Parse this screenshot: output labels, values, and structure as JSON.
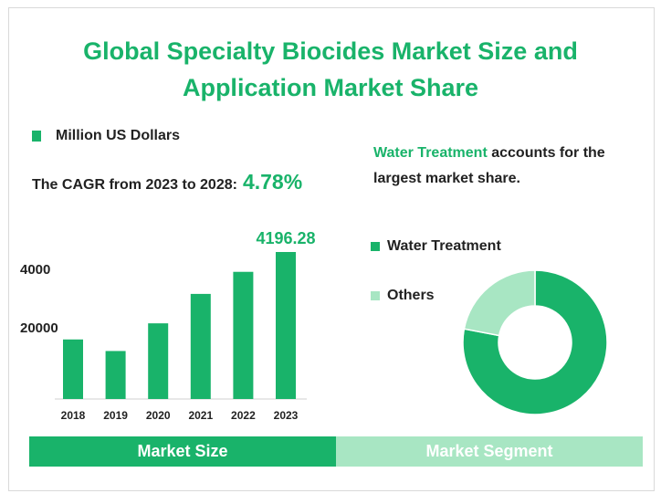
{
  "title_line1": "Global Specialty Biocides Market Size and",
  "title_line2": "Application Market Share",
  "unit_legend": "Million US Dollars",
  "cagr_label": "The CAGR from 2023 to 2028:",
  "cagr_value": "4.78%",
  "headline_highlight": "Water Treatment",
  "headline_rest": " accounts for the largest market share.",
  "tabs": {
    "left": "Market Size",
    "right": "Market Segment"
  },
  "colors": {
    "primary": "#19b36a",
    "light": "#a8e6c3"
  },
  "chart_data": [
    {
      "type": "bar",
      "categories": [
        "2018",
        "2019",
        "2020",
        "2021",
        "2022",
        "2023"
      ],
      "series": [
        {
          "name": "Million US Dollars",
          "values": [
            1700,
            1370,
            2160,
            3000,
            3630,
            4196.28
          ]
        }
      ],
      "ytick_labels": [
        "20000",
        "4000"
      ],
      "data_labels": {
        "5": "4196.28"
      }
    },
    {
      "type": "pie",
      "style": "donut",
      "slices": [
        {
          "label": "Water Treatment",
          "value": 78
        },
        {
          "label": "Others",
          "value": 22
        }
      ]
    }
  ]
}
